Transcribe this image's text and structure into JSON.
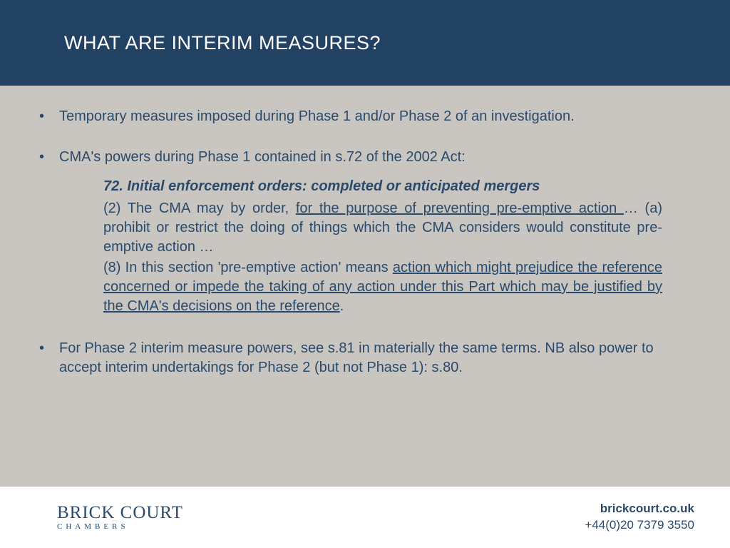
{
  "colors": {
    "header_bg": "#224263",
    "body_bg": "#c9c6c1",
    "footer_bg": "#ffffff",
    "text": "#2a4a6b",
    "header_text": "#ffffff"
  },
  "header": {
    "title": "WHAT ARE INTERIM MEASURES?"
  },
  "bullets": {
    "b1": "Temporary measures imposed during Phase 1 and/or Phase 2 of an investigation.",
    "b2": "CMA's powers during Phase 1 contained in s.72 of the 2002 Act:",
    "b3": "For Phase 2 interim measure powers, see s.81 in materially the same terms. NB also power to accept interim undertakings for Phase 2 (but not Phase 1): s.80."
  },
  "quote": {
    "heading": "72. Initial enforcement orders: completed or anticipated mergers",
    "p1_a": "(2) The CMA may by order, ",
    "p1_u": "for the purpose of preventing pre-emptive action ",
    "p1_b": "… (a) prohibit or restrict the doing of things which the CMA considers would constitute pre-emptive action …",
    "p2_a": "(8) In this section 'pre-emptive action' means ",
    "p2_u": "action which might prejudice the reference concerned or impede the taking of any action under this Part which may be justified by the CMA's decisions on the reference",
    "p2_b": "."
  },
  "footer": {
    "logo_main": "BRICK COURT",
    "logo_sub": "CHAMBERS",
    "url": "brickcourt.co.uk",
    "phone": "+44(0)20 7379 3550"
  }
}
